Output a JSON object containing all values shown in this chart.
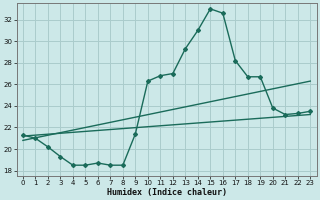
{
  "xlabel": "Humidex (Indice chaleur)",
  "bg_color": "#cce8e8",
  "grid_color": "#aacccc",
  "line_color": "#1a6b5a",
  "xlim": [
    -0.5,
    23.5
  ],
  "ylim": [
    17.5,
    33.5
  ],
  "xticks": [
    0,
    1,
    2,
    3,
    4,
    5,
    6,
    7,
    8,
    9,
    10,
    11,
    12,
    13,
    14,
    15,
    16,
    17,
    18,
    19,
    20,
    21,
    22,
    23
  ],
  "yticks": [
    18,
    20,
    22,
    24,
    26,
    28,
    30,
    32
  ],
  "line1_x": [
    0,
    1,
    2,
    3,
    4,
    5,
    6,
    7,
    8,
    9,
    10,
    11,
    12,
    13,
    14,
    15,
    16,
    17,
    18,
    19,
    20,
    21,
    22,
    23
  ],
  "line1_y": [
    21.3,
    21.0,
    20.2,
    19.3,
    18.5,
    18.5,
    18.7,
    18.5,
    18.5,
    21.4,
    26.3,
    26.8,
    27.0,
    29.3,
    31.0,
    33.0,
    32.6,
    28.2,
    26.7,
    26.7,
    23.8,
    23.2,
    23.3,
    23.5
  ],
  "trend1_x": [
    0,
    23
  ],
  "trend1_y": [
    20.8,
    26.3
  ],
  "trend2_x": [
    0,
    23
  ],
  "trend2_y": [
    21.2,
    23.2
  ]
}
